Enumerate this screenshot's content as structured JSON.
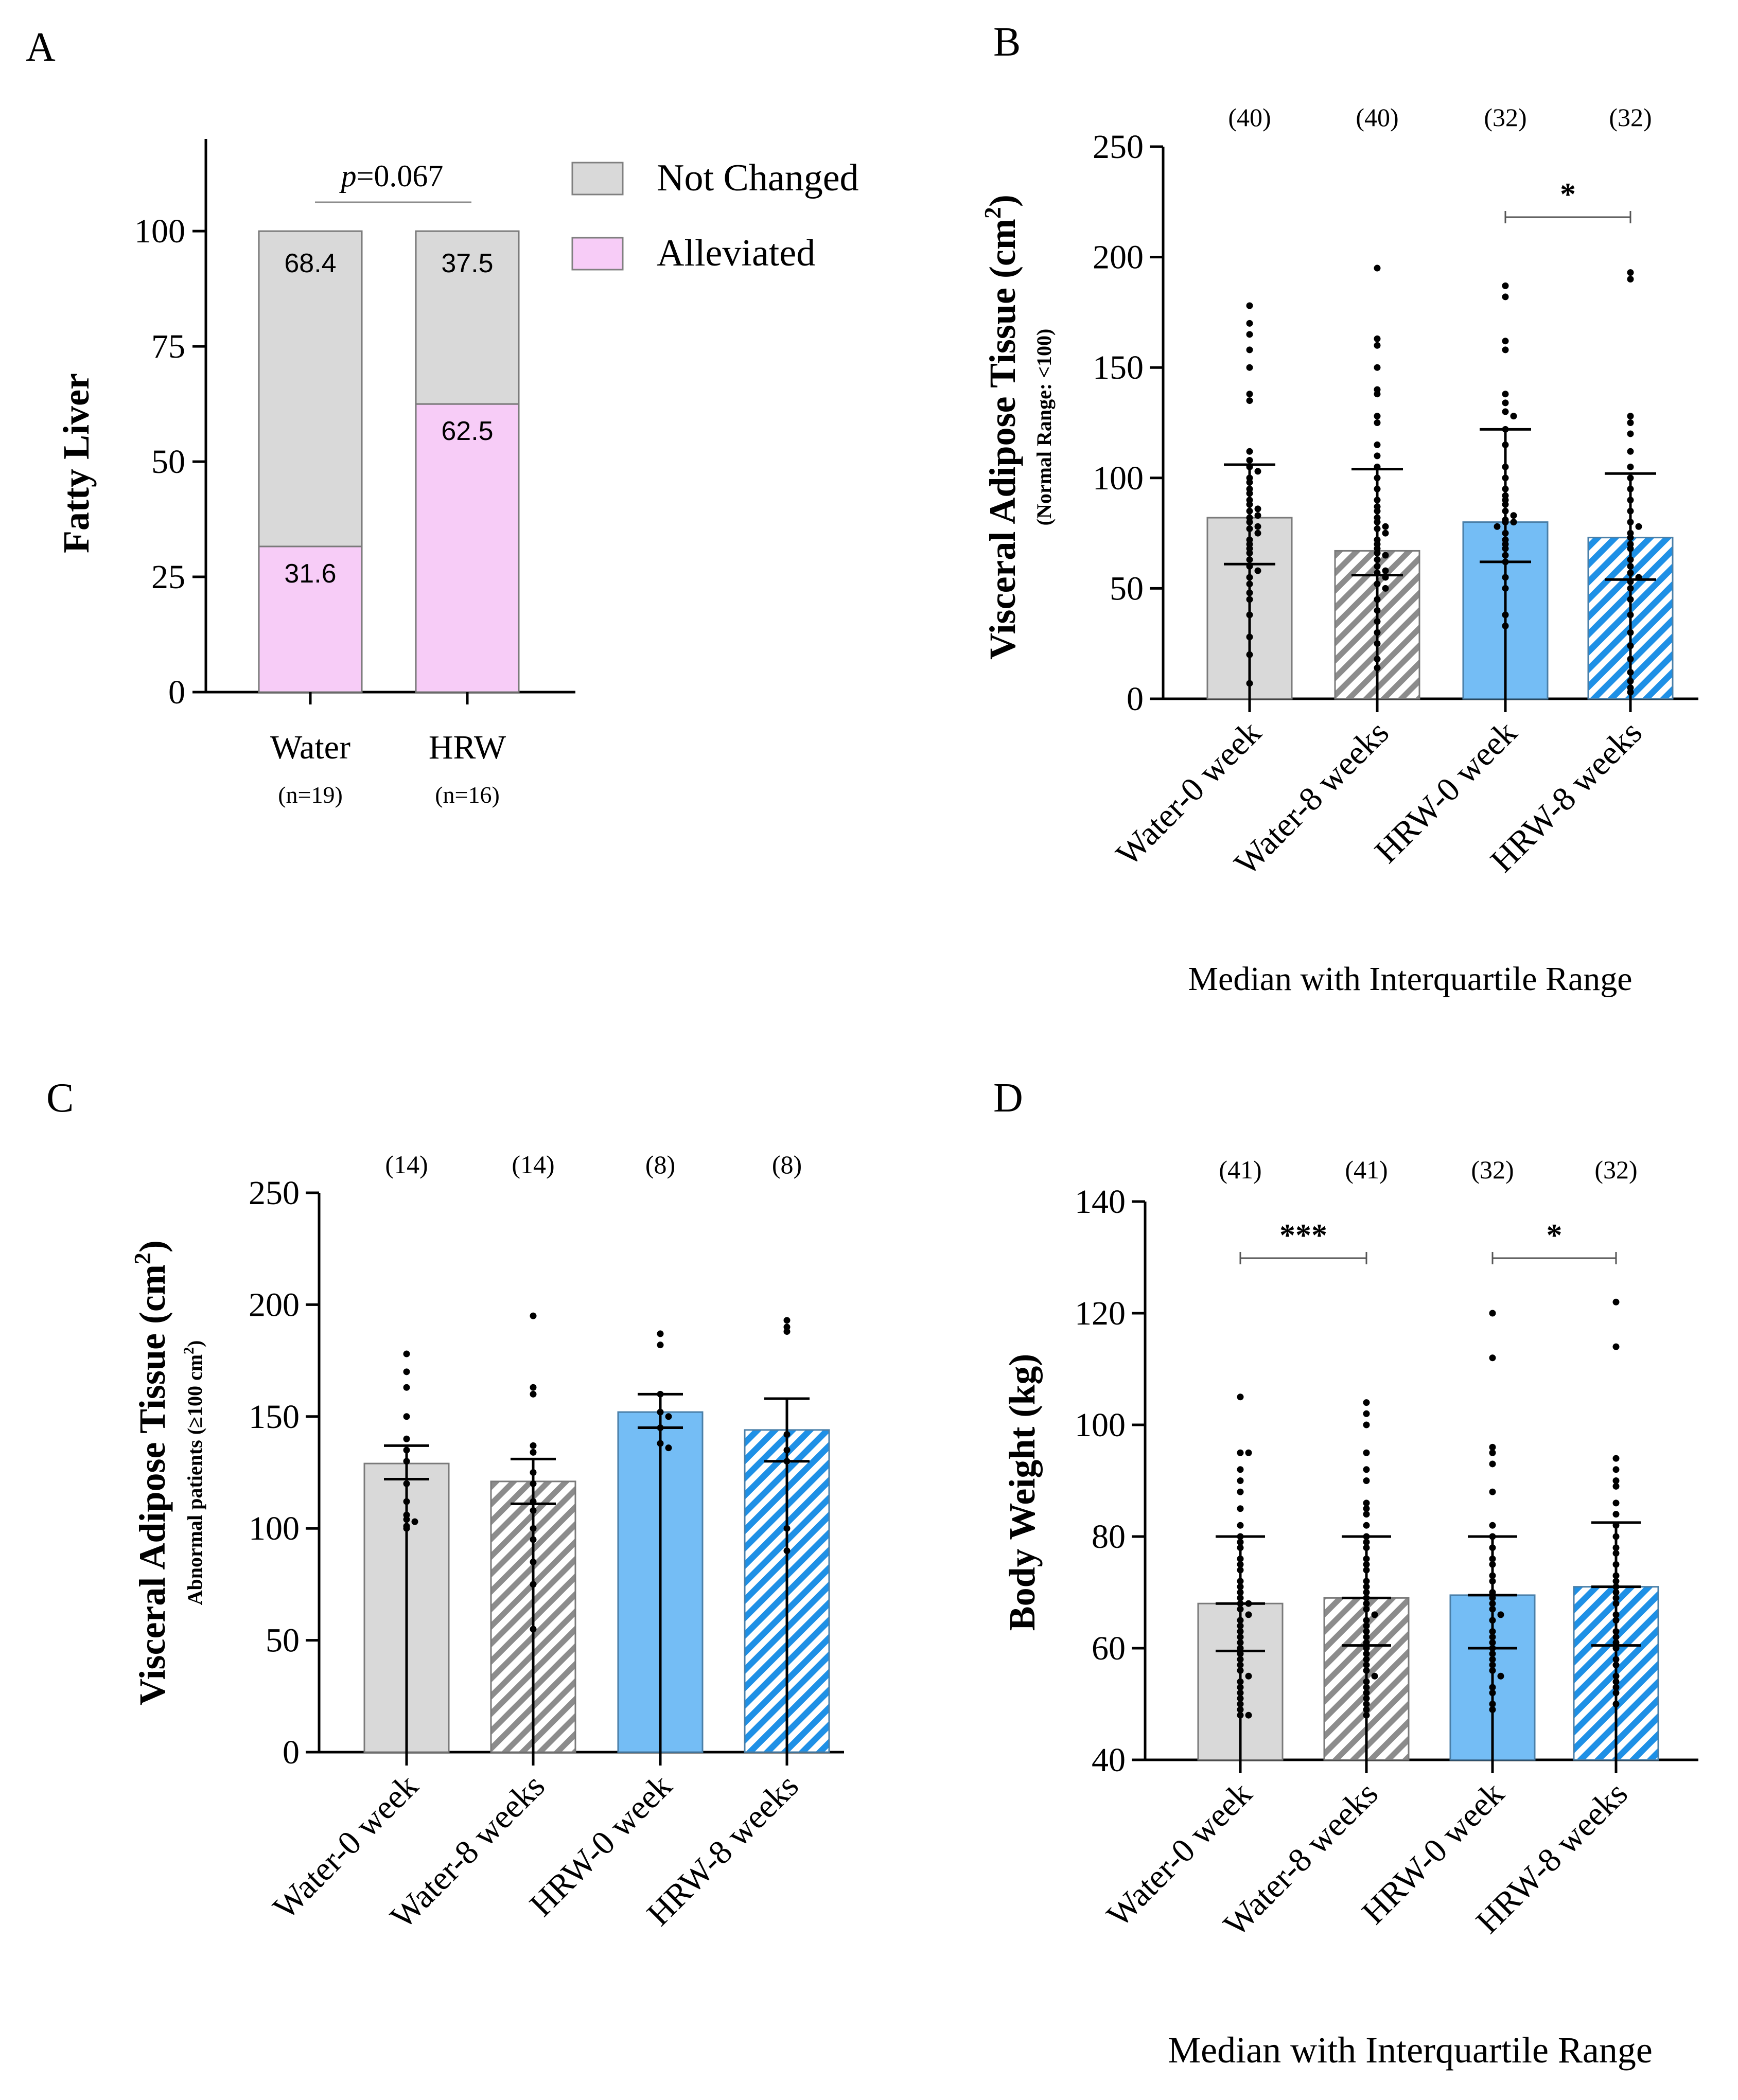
{
  "colors": {
    "gray_fill": "#d9d9d9",
    "pink_fill": "#f7ccf7",
    "blue_fill": "#74bdf5",
    "blue_hatch": "#1e90e6",
    "gray_hatch": "#8c8c8c",
    "axis": "#000000"
  },
  "chart_data": [
    {
      "panel": "A",
      "type": "bar",
      "stacked": true,
      "ylabel": "Fatty Liver",
      "ylim": [
        0,
        120
      ],
      "yticks": [
        "0",
        "25",
        "50",
        "75",
        "100"
      ],
      "categories": [
        "Water",
        "HRW"
      ],
      "category_n": [
        "(n=19)",
        "(n=16)"
      ],
      "series": [
        {
          "name": "Alleviated",
          "values": [
            31.6,
            62.5
          ],
          "labels": [
            "31.6",
            "62.5"
          ]
        },
        {
          "name": "Not Changed",
          "values": [
            68.4,
            37.5
          ],
          "labels": [
            "68.4",
            "37.5"
          ]
        }
      ],
      "legend": [
        "Not Changed",
        "Alleviated"
      ],
      "annotation": {
        "p_symbol": "p",
        "p_value": "=0.067"
      }
    },
    {
      "panel": "B",
      "type": "bar",
      "ylabel": "Visceral Adipose Tissue (cm",
      "ylabel_sup": "2",
      "ylabel_close": ")",
      "ysub": "(Normal Range: <100)",
      "ylim": [
        0,
        250
      ],
      "yticks": [
        "0",
        "50",
        "100",
        "150",
        "200",
        "250"
      ],
      "categories": [
        "Water-0 week",
        "Water-8 weeks",
        "HRW-0 week",
        "HRW-8 weeks"
      ],
      "counts": [
        "(40)",
        "(40)",
        "(32)",
        "(32)"
      ],
      "values": [
        82,
        67,
        80,
        73
      ],
      "q1": [
        61,
        56,
        62,
        54
      ],
      "q3": [
        106,
        104,
        122,
        102
      ],
      "significance": [
        {
          "from": 2,
          "to": 3,
          "label": "*"
        }
      ],
      "footer": "Median with Interquartile Range",
      "points": [
        [
          178,
          170,
          165,
          158,
          150,
          138,
          135,
          112,
          108,
          105,
          103,
          100,
          98,
          95,
          93,
          90,
          88,
          86,
          85,
          83,
          82,
          80,
          78,
          77,
          75,
          72,
          70,
          68,
          66,
          63,
          60,
          58,
          55,
          52,
          48,
          45,
          38,
          28,
          20,
          7
        ],
        [
          195,
          163,
          160,
          150,
          140,
          138,
          128,
          125,
          115,
          110,
          105,
          100,
          95,
          90,
          87,
          85,
          82,
          80,
          78,
          77,
          75,
          72,
          70,
          68,
          66,
          65,
          63,
          60,
          58,
          57,
          55,
          52,
          50,
          45,
          40,
          35,
          30,
          25,
          18,
          14
        ],
        [
          187,
          182,
          162,
          158,
          138,
          134,
          130,
          128,
          122,
          115,
          105,
          100,
          95,
          92,
          90,
          88,
          85,
          83,
          81,
          80,
          80,
          78,
          75,
          72,
          70,
          68,
          65,
          62,
          55,
          50,
          38,
          33
        ],
        [
          193,
          190,
          128,
          125,
          120,
          112,
          105,
          100,
          95,
          90,
          85,
          80,
          78,
          75,
          73,
          70,
          68,
          63,
          60,
          57,
          55,
          53,
          50,
          45,
          38,
          30,
          24,
          18,
          12,
          8,
          5,
          3
        ]
      ]
    },
    {
      "panel": "C",
      "type": "bar",
      "ylabel": "Visceral Adipose Tissue (cm",
      "ylabel_sup": "2",
      "ylabel_close": ")",
      "ysub_prefix": "Abnormal patients (≥100 cm",
      "ysub_sup": "2",
      "ysub_close": ")",
      "ylim": [
        0,
        250
      ],
      "yticks": [
        "0",
        "50",
        "100",
        "150",
        "200",
        "250"
      ],
      "categories": [
        "Water-0 week",
        "Water-8 weeks",
        "HRW-0 week",
        "HRW-8 weeks"
      ],
      "counts": [
        "(14)",
        "(14)",
        "(8)",
        "(8)"
      ],
      "values": [
        129,
        121,
        152,
        144
      ],
      "err_low": [
        122,
        111,
        145,
        130
      ],
      "err_high": [
        137,
        131,
        160,
        158
      ],
      "points": [
        [
          178,
          170,
          163,
          150,
          140,
          135,
          130,
          120,
          112,
          106,
          104,
          103,
          101,
          100
        ],
        [
          195,
          163,
          160,
          137,
          134,
          125,
          120,
          112,
          108,
          100,
          95,
          85,
          75,
          55
        ],
        [
          187,
          182,
          160,
          152,
          150,
          145,
          138,
          136
        ],
        [
          193,
          190,
          188,
          142,
          135,
          130,
          100,
          90
        ]
      ]
    },
    {
      "panel": "D",
      "type": "bar",
      "ylabel": "Body Weight (kg)",
      "ylim": [
        40,
        140
      ],
      "yticks": [
        "40",
        "60",
        "80",
        "100",
        "120",
        "140"
      ],
      "categories": [
        "Water-0 week",
        "Water-8 weeks",
        "HRW-0 week",
        "HRW-8 weeks"
      ],
      "counts": [
        "(41)",
        "(41)",
        "(32)",
        "(32)"
      ],
      "values": [
        68,
        69,
        69.5,
        71
      ],
      "q1": [
        59.5,
        60.5,
        60,
        60.5
      ],
      "q3": [
        80,
        80,
        80,
        82.5
      ],
      "significance": [
        {
          "from": 0,
          "to": 1,
          "label": "***"
        },
        {
          "from": 2,
          "to": 3,
          "label": "*"
        }
      ],
      "footer": "Median with Interquartile Range",
      "points": [
        [
          105,
          95,
          95,
          92,
          90,
          88,
          85,
          82,
          80,
          79,
          78,
          76,
          75,
          74,
          72,
          71,
          70,
          69,
          68,
          68,
          67,
          66,
          65,
          64,
          63,
          62,
          61,
          60,
          59,
          58,
          57,
          56,
          55,
          54,
          53,
          52,
          51,
          50,
          49,
          48,
          48
        ],
        [
          104,
          102,
          100,
          95,
          92,
          90,
          86,
          85,
          84,
          82,
          80,
          79,
          78,
          76,
          75,
          74,
          72,
          71,
          70,
          69,
          68,
          67,
          66,
          65,
          64,
          63,
          62,
          61,
          60,
          59,
          58,
          57,
          56,
          55,
          54,
          53,
          52,
          51,
          50,
          49,
          48
        ],
        [
          120,
          112,
          96,
          95,
          93,
          88,
          82,
          80,
          78,
          76,
          75,
          73,
          72,
          70,
          69,
          68,
          67,
          66,
          65,
          63,
          62,
          61,
          60,
          59,
          58,
          57,
          56,
          55,
          53,
          52,
          50,
          49
        ],
        [
          122,
          114,
          94,
          92,
          90,
          89,
          86,
          84,
          82,
          80,
          78,
          77,
          75,
          73,
          72,
          71,
          70,
          69,
          68,
          66,
          65,
          63,
          62,
          61,
          60,
          58,
          57,
          55,
          54,
          53,
          52,
          50
        ]
      ]
    }
  ]
}
